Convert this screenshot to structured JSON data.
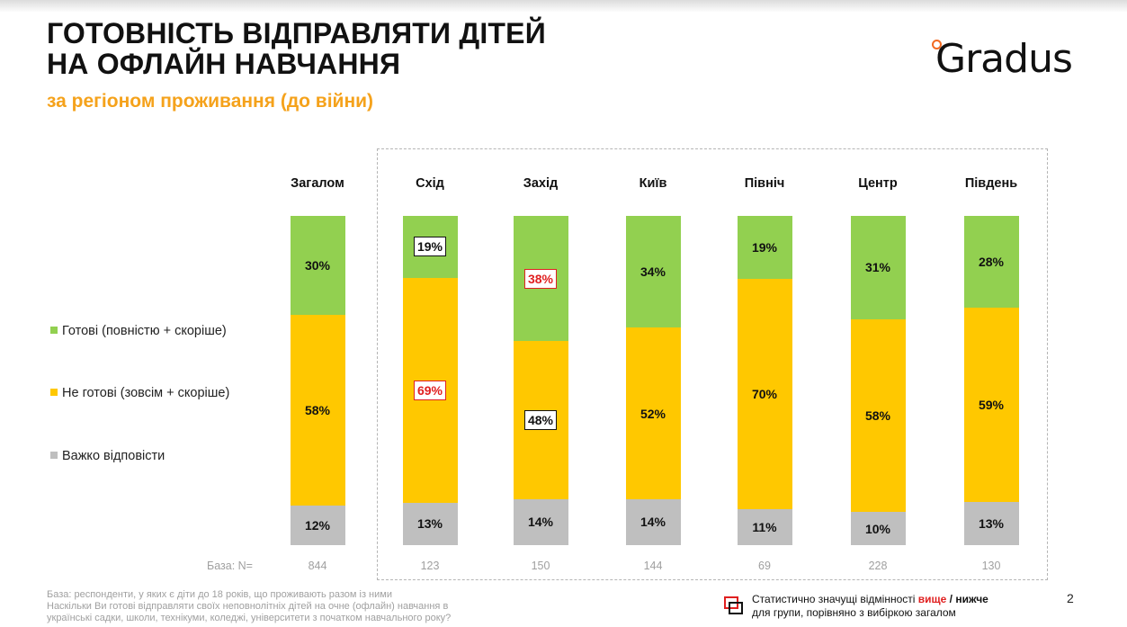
{
  "header": {
    "title_line1": "ГОТОВНІСТЬ ВІДПРАВЛЯТИ ДІТЕЙ",
    "title_line2": "НА ОФЛАЙН НАВЧАННЯ",
    "subtitle": "за регіоном проживання (до війни)",
    "logo_text": "Gradus"
  },
  "chart_data": {
    "type": "bar",
    "stacked": true,
    "percent": true,
    "categories": [
      "Загалом",
      "Схід",
      "Захід",
      "Київ",
      "Північ",
      "Центр",
      "Південь"
    ],
    "series": [
      {
        "name": "Готові (повністю + скоріше)",
        "color": "#92d050",
        "values": [
          30,
          19,
          38,
          34,
          19,
          31,
          28
        ]
      },
      {
        "name": "Не готові (зовсім + скоріше)",
        "color": "#ffc800",
        "values": [
          58,
          69,
          48,
          52,
          70,
          58,
          59
        ]
      },
      {
        "name": "Важко відповісти",
        "color": "#bfbfbf",
        "values": [
          12,
          13,
          14,
          14,
          11,
          10,
          13
        ]
      }
    ],
    "highlights": {
      "higher": [
        {
          "series": 1,
          "category": 1
        },
        {
          "series": 0,
          "category": 2
        }
      ],
      "lower": [
        {
          "series": 0,
          "category": 1
        },
        {
          "series": 1,
          "category": 2
        }
      ]
    },
    "legend_position": "left",
    "base_label": "База: N=",
    "base_values": [
      "844",
      "123",
      "150",
      "144",
      "69",
      "228",
      "130"
    ]
  },
  "footer": {
    "footnote_line1": "База: респонденти, у яких є діти до 18 років, що проживають разом із ними",
    "footnote_line2": "Наскільки Ви готові відправляти своїх неповнолітніх дітей на очне (офлайн) навчання в",
    "footnote_line3": "українські садки, школи, технікуми, коледжі, університети з початком навчального року?",
    "sig_prefix": "Статистично значущі відмінності ",
    "sig_higher": "вище",
    "sig_sep": " / ",
    "sig_lower": "нижче",
    "sig_line2": "для групи, порівняно з вибіркою загалом",
    "page_number": "2"
  },
  "colors": {
    "accent": "#f5a21b",
    "logo_dot": "#f26a21",
    "sig_red": "#e02020"
  }
}
